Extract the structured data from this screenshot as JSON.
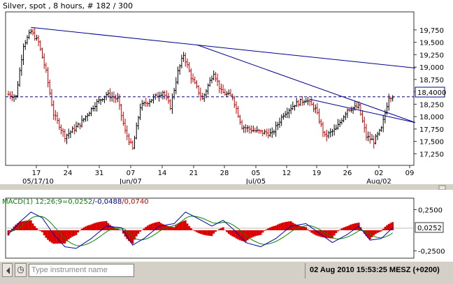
{
  "window": {
    "title": "Silver, spot , 8 hours, # 182 / 300"
  },
  "chart_data": [
    {
      "type": "candlestick",
      "title": "Silver, spot , 8 hours, # 182 / 300",
      "ylim": [
        17030,
        20100
      ],
      "y_ticks": [
        17250,
        17500,
        17750,
        18000,
        18250,
        18500,
        18750,
        19000,
        19250,
        19500,
        19750
      ],
      "y_tick_labels": [
        "17,250",
        "17,500",
        "17,750",
        "18,000",
        "18,250",
        "18,500",
        "18,750",
        "19,000",
        "19,250",
        "19,500",
        "19,750"
      ],
      "x_ticks": [
        "17",
        "24",
        "31",
        "07",
        "14",
        "21",
        "28",
        "05",
        "12",
        "19",
        "26",
        "02",
        "09"
      ],
      "month_labels": [
        "05/17/10",
        "Jun/07",
        "Jul/05",
        "Aug/02"
      ],
      "last_price": 18400,
      "last_price_label": "18,4000",
      "grid": false,
      "series": [
        {
          "name": "ohlc",
          "points": []
        },
        {
          "name": "trendline",
          "points": []
        }
      ]
    },
    {
      "type": "macd",
      "title": "MACD(1) 12;26;9=0,0252/-0,0488/0,0740",
      "legend": {
        "macd": "MACD(1) 12;26;9=0,0252",
        "signal": "/-0,0488",
        "histogram": "/0,0740"
      },
      "ylim": [
        -0.33,
        0.38
      ],
      "y_ticks": [
        0.25,
        -0.25
      ],
      "y_tick_labels": [
        "0,2500",
        "-0,2500"
      ],
      "last_value_label": "0,0252",
      "colors": {
        "macd": "#0000aa",
        "signal": "#008800",
        "histogram": "#dd0000"
      },
      "series": [
        {
          "name": "macd",
          "values": []
        },
        {
          "name": "signal",
          "values": []
        },
        {
          "name": "histogram",
          "values": []
        }
      ]
    }
  ],
  "colors": {
    "up": "#000000",
    "down": "#d40000",
    "trendline": "#00008b",
    "price_line": "#00008b"
  },
  "statusbar": {
    "search_placeholder": "Type instrument name",
    "datetime": "02 Aug 2010 15:53:25  MESZ (+0200)"
  }
}
